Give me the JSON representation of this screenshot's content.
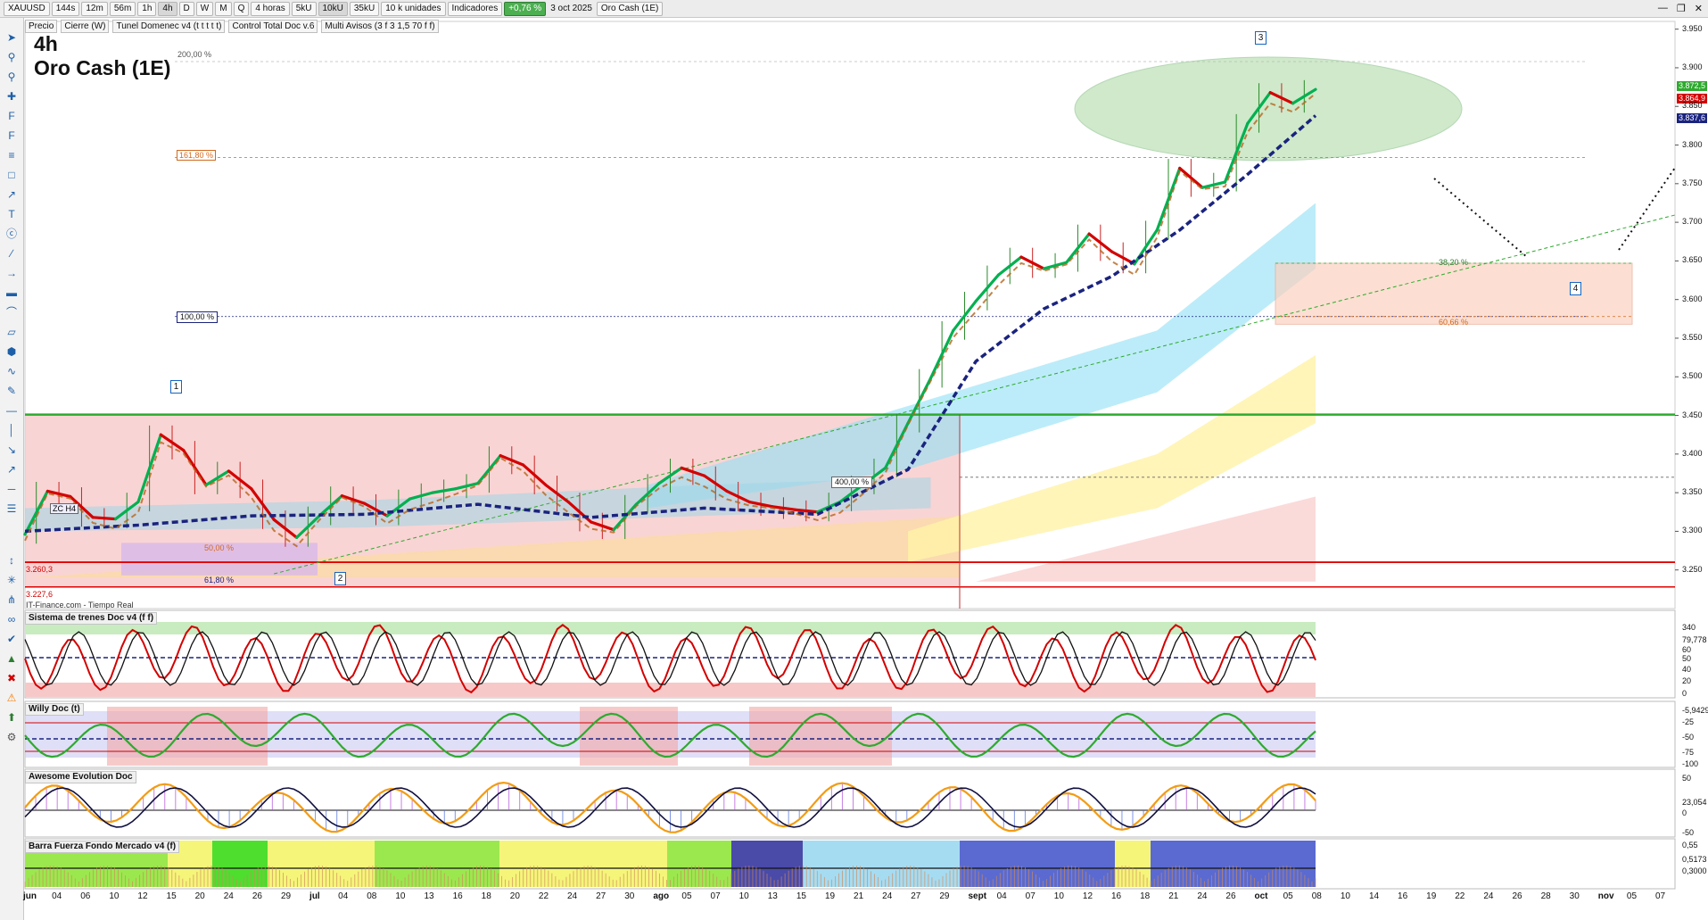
{
  "toolbar": {
    "symbol": "XAUUSD",
    "intervals": [
      "144s",
      "12m",
      "56m",
      "1h",
      "4h",
      "D",
      "W",
      "M",
      "Q"
    ],
    "active_interval": "4h",
    "period": "4 horas",
    "vol_buttons": [
      "5kU",
      "10kU",
      "35kU"
    ],
    "units": "10 k unidades",
    "indicators": "Indicadores",
    "change_badge": "+0,76 %",
    "date": "3 oct 2025",
    "chart_name": "Oro Cash (1E)"
  },
  "legend": {
    "items": [
      "Precio",
      "Cierre (W)",
      "Tunel Domenec v4 (t t t t t)",
      "Control Total Doc v.6",
      "Multi Avisos (3 f 3 1,5 70 f f)"
    ]
  },
  "main_title": {
    "timeframe": "4h",
    "instrument": "Oro Cash (1E)"
  },
  "annotations": {
    "fib_200": "200,00 %",
    "fib_161": "161,80 %",
    "fib_100": "100,00 %",
    "fib_400": "400,00 %",
    "fib_50": "50,00 %",
    "fib_618": "61,80 %",
    "fib_382": "38,20 %",
    "fib_6066": "60,66 %",
    "zc": "ZC H4",
    "price_low1": "3.260,3",
    "price_low2": "3.227,6",
    "source": "IT-Finance.com - Tiempo Real",
    "wave_labels": [
      "1",
      "2",
      "3",
      "4"
    ]
  },
  "price_tags": {
    "last": "3.872,5",
    "close": "3.864,9",
    "signal": "3.837,6"
  },
  "panels": {
    "trenes": "Sistema de trenes Doc v4 (f f)",
    "willy": "Willy Doc (t)",
    "awesome": "Awesome Evolution Doc",
    "barra": "Barra Fuerza Fondo Mercado v4 (f)"
  },
  "panel_scales": {
    "trenes": [
      "340",
      "79,778",
      "50",
      "60",
      "40",
      "20",
      "0"
    ],
    "willy": [
      "-5,9429",
      "-25",
      "-50",
      "-75",
      "-100"
    ],
    "awesome": [
      "50",
      "23,054",
      "0",
      "-50"
    ],
    "barra": [
      "0,55",
      "0,5173",
      "0,3000"
    ]
  },
  "colors": {
    "up": "#00b050",
    "down": "#d40000",
    "signal": "#1a237e",
    "support": "#2eaa2e",
    "resistance": "#e00000"
  },
  "chart_data": {
    "type": "line",
    "title": "Oro Cash (1E)",
    "timeframe": "4h",
    "ylim": [
      3200,
      3960
    ],
    "yticks": [
      3250,
      3300,
      3350,
      3400,
      3450,
      3500,
      3550,
      3600,
      3650,
      3700,
      3750,
      3800,
      3850,
      3900,
      3950
    ],
    "x_labels": [
      "jun",
      "04",
      "06",
      "10",
      "12",
      "15",
      "20",
      "24",
      "26",
      "29",
      "jul",
      "04",
      "08",
      "10",
      "13",
      "16",
      "18",
      "20",
      "22",
      "24",
      "27",
      "30",
      "ago",
      "05",
      "07",
      "10",
      "13",
      "15",
      "19",
      "21",
      "24",
      "27",
      "29",
      "sept",
      "04",
      "07",
      "10",
      "12",
      "16",
      "18",
      "21",
      "24",
      "26",
      "oct",
      "05",
      "08",
      "10",
      "14",
      "16",
      "19",
      "22",
      "24",
      "26",
      "28",
      "30",
      "nov",
      "05",
      "07"
    ],
    "series": [
      {
        "name": "Precio",
        "points": [
          [
            0,
            3296
          ],
          [
            2,
            3352
          ],
          [
            4,
            3345
          ],
          [
            6,
            3318
          ],
          [
            8,
            3316
          ],
          [
            10,
            3338
          ],
          [
            12,
            3425
          ],
          [
            14,
            3405
          ],
          [
            16,
            3360
          ],
          [
            18,
            3378
          ],
          [
            20,
            3355
          ],
          [
            22,
            3315
          ],
          [
            24,
            3292
          ],
          [
            26,
            3320
          ],
          [
            28,
            3346
          ],
          [
            30,
            3336
          ],
          [
            32,
            3320
          ],
          [
            34,
            3342
          ],
          [
            36,
            3350
          ],
          [
            38,
            3355
          ],
          [
            40,
            3362
          ],
          [
            42,
            3398
          ],
          [
            44,
            3386
          ],
          [
            46,
            3360
          ],
          [
            48,
            3338
          ],
          [
            50,
            3312
          ],
          [
            52,
            3302
          ],
          [
            54,
            3335
          ],
          [
            56,
            3362
          ],
          [
            58,
            3382
          ],
          [
            60,
            3372
          ],
          [
            62,
            3352
          ],
          [
            64,
            3338
          ],
          [
            66,
            3332
          ],
          [
            68,
            3328
          ],
          [
            70,
            3325
          ],
          [
            72,
            3338
          ],
          [
            74,
            3360
          ],
          [
            76,
            3382
          ],
          [
            78,
            3440
          ],
          [
            80,
            3498
          ],
          [
            82,
            3560
          ],
          [
            84,
            3598
          ],
          [
            86,
            3632
          ],
          [
            88,
            3655
          ],
          [
            90,
            3640
          ],
          [
            92,
            3648
          ],
          [
            94,
            3685
          ],
          [
            96,
            3662
          ],
          [
            98,
            3646
          ],
          [
            100,
            3690
          ],
          [
            102,
            3770
          ],
          [
            104,
            3745
          ],
          [
            106,
            3752
          ],
          [
            108,
            3828
          ],
          [
            110,
            3868
          ],
          [
            112,
            3854
          ],
          [
            114,
            3872
          ]
        ]
      },
      {
        "name": "Cierre (W)",
        "points": [
          [
            0,
            3300
          ],
          [
            10,
            3308
          ],
          [
            20,
            3320
          ],
          [
            30,
            3322
          ],
          [
            40,
            3335
          ],
          [
            50,
            3318
          ],
          [
            60,
            3330
          ],
          [
            70,
            3322
          ],
          [
            78,
            3380
          ],
          [
            84,
            3520
          ],
          [
            90,
            3588
          ],
          [
            96,
            3630
          ],
          [
            102,
            3690
          ],
          [
            108,
            3762
          ],
          [
            114,
            3838
          ]
        ]
      }
    ],
    "levels": [
      {
        "label": "200,00 %",
        "price": 3908
      },
      {
        "label": "161,80 %",
        "price": 3784
      },
      {
        "label": "100,00 %",
        "price": 3578
      },
      {
        "label": "38,20 %",
        "price": 3647
      },
      {
        "label": "60,66 %",
        "price": 3578
      },
      {
        "label": "support",
        "price": 3451
      },
      {
        "label": "400,00 %",
        "price": 3370
      },
      {
        "label": "3.260,3",
        "price": 3260
      },
      {
        "label": "3.227,6",
        "price": 3228
      }
    ]
  }
}
